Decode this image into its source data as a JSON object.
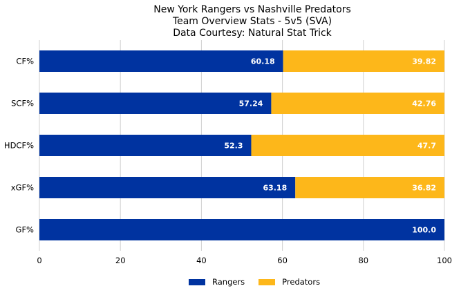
{
  "chart_data": {
    "type": "bar",
    "orientation": "horizontal",
    "stacked": true,
    "title_lines": [
      "New York Rangers vs Nashville Predators",
      "Team Overview Stats - 5v5 (SVA)",
      "Data Courtesy: Natural Stat Trick"
    ],
    "categories": [
      "CF%",
      "SCF%",
      "HDCF%",
      "xGF%",
      "GF%"
    ],
    "series": [
      {
        "name": "Rangers",
        "color": "#0033a0",
        "values": [
          60.18,
          57.24,
          52.3,
          63.18,
          100.0
        ],
        "labels": [
          "60.18",
          "57.24",
          "52.3",
          "63.18",
          "100.0"
        ]
      },
      {
        "name": "Predators",
        "color": "#fdb71a",
        "values": [
          39.82,
          42.76,
          47.7,
          36.82,
          0
        ],
        "labels": [
          "39.82",
          "42.76",
          "47.7",
          "36.82",
          ""
        ]
      }
    ],
    "xlim": [
      0,
      100
    ],
    "xticks": [
      "0",
      "20",
      "40",
      "60",
      "80",
      "100"
    ],
    "xlabel": "",
    "ylabel": "",
    "grid": "vertical",
    "legend_position": "bottom-center"
  }
}
